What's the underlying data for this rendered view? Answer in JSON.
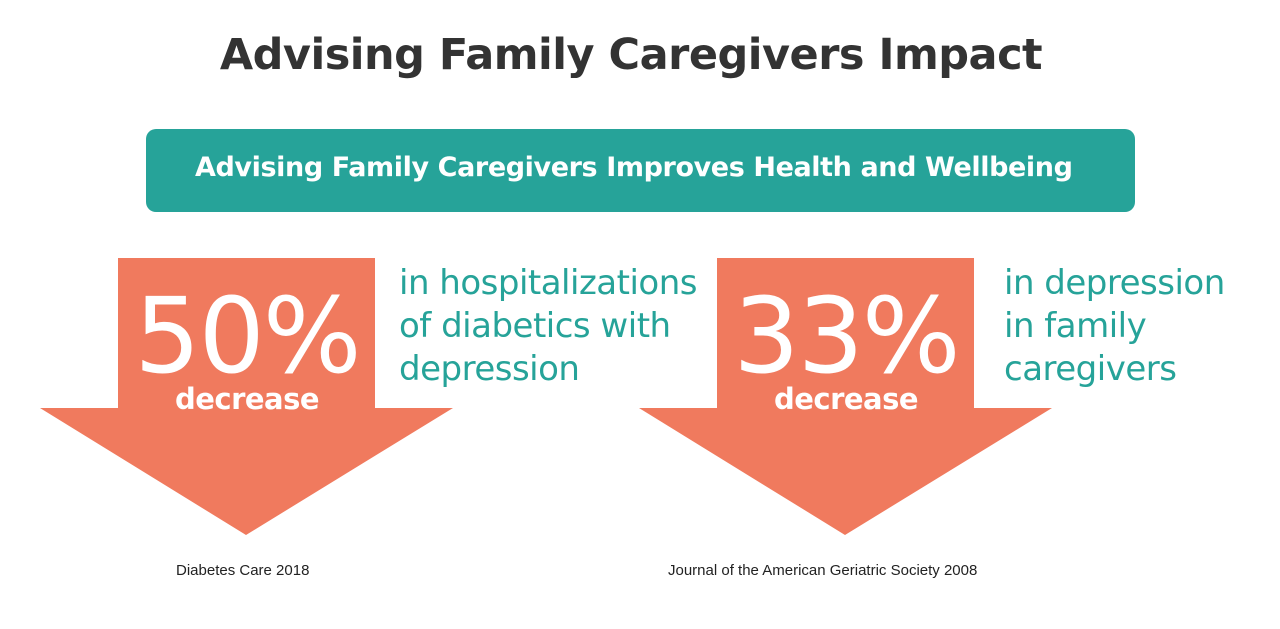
{
  "title": "Advising Family Caregivers Impact",
  "banner": "Advising Family Caregivers Improves Health and Wellbeing",
  "colors": {
    "accent_teal": "#26a399",
    "arrow_coral": "#f07a5e",
    "title_dark": "#333333"
  },
  "stats": [
    {
      "value": "50%",
      "label": "decrease",
      "description_lines": [
        "in hospitalizations",
        "of diabetics with",
        "depression"
      ],
      "source": "Diabetes Care 2018",
      "icon": "arrow-down-icon"
    },
    {
      "value": "33%",
      "label": "decrease",
      "description_lines": [
        "in depression",
        "in family",
        "caregivers"
      ],
      "source": "Journal of  the American Geriatric Society 2008",
      "icon": "arrow-down-icon"
    }
  ]
}
